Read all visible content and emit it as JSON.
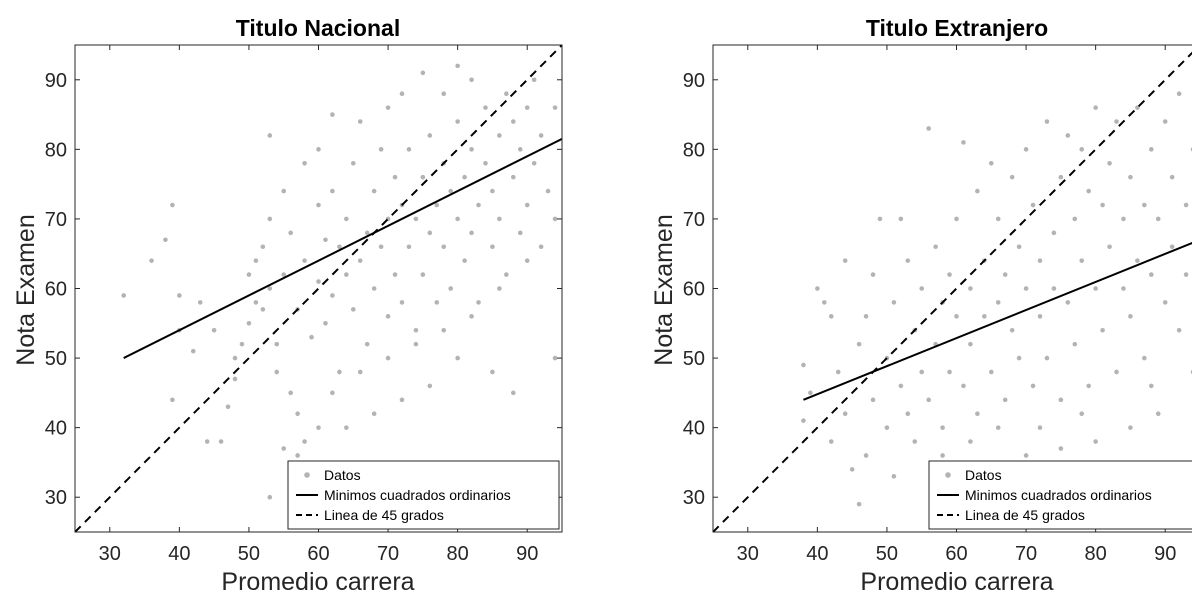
{
  "chart_data": [
    {
      "type": "scatter",
      "title": "Titulo Nacional",
      "xlabel": "Promedio carrera",
      "ylabel": "Nota Examen",
      "xlim": [
        25,
        95
      ],
      "ylim": [
        25,
        95
      ],
      "xticks": [
        30,
        40,
        50,
        60,
        70,
        80,
        90
      ],
      "yticks": [
        30,
        40,
        50,
        60,
        70,
        80,
        90
      ],
      "grid": false,
      "legend": {
        "position": "bottom-right",
        "entries": [
          "Datos",
          "Minimos cuadrados ordinarios",
          "Linea de 45 grados"
        ]
      },
      "series": [
        {
          "name": "Datos",
          "kind": "scatter",
          "color": "#b3b3b3",
          "points": [
            [
              32,
              59
            ],
            [
              36,
              64
            ],
            [
              38,
              67
            ],
            [
              39,
              72
            ],
            [
              40,
              59
            ],
            [
              40,
              54
            ],
            [
              39,
              44
            ],
            [
              42,
              51
            ],
            [
              43,
              58
            ],
            [
              44,
              38
            ],
            [
              45,
              54
            ],
            [
              46,
              38
            ],
            [
              47,
              43
            ],
            [
              48,
              47
            ],
            [
              48,
              50
            ],
            [
              49,
              52
            ],
            [
              50,
              55
            ],
            [
              50,
              62
            ],
            [
              51,
              58
            ],
            [
              51,
              64
            ],
            [
              52,
              57
            ],
            [
              52,
              66
            ],
            [
              53,
              60
            ],
            [
              53,
              70
            ],
            [
              53,
              82
            ],
            [
              54,
              48
            ],
            [
              54,
              52
            ],
            [
              55,
              62
            ],
            [
              55,
              74
            ],
            [
              56,
              45
            ],
            [
              56,
              68
            ],
            [
              57,
              36
            ],
            [
              57,
              57
            ],
            [
              58,
              64
            ],
            [
              58,
              78
            ],
            [
              59,
              53
            ],
            [
              60,
              61
            ],
            [
              60,
              72
            ],
            [
              60,
              80
            ],
            [
              61,
              55
            ],
            [
              61,
              67
            ],
            [
              62,
              59
            ],
            [
              62,
              74
            ],
            [
              62,
              85
            ],
            [
              63,
              48
            ],
            [
              63,
              66
            ],
            [
              64,
              62
            ],
            [
              64,
              70
            ],
            [
              65,
              78
            ],
            [
              65,
              57
            ],
            [
              66,
              64
            ],
            [
              66,
              84
            ],
            [
              67,
              68
            ],
            [
              67,
              52
            ],
            [
              68,
              74
            ],
            [
              68,
              60
            ],
            [
              69,
              66
            ],
            [
              69,
              80
            ],
            [
              70,
              70
            ],
            [
              70,
              56
            ],
            [
              70,
              86
            ],
            [
              71,
              62
            ],
            [
              71,
              76
            ],
            [
              72,
              72
            ],
            [
              72,
              58
            ],
            [
              72,
              88
            ],
            [
              73,
              66
            ],
            [
              73,
              80
            ],
            [
              74,
              70
            ],
            [
              74,
              54
            ],
            [
              75,
              76
            ],
            [
              75,
              62
            ],
            [
              75,
              91
            ],
            [
              76,
              68
            ],
            [
              76,
              82
            ],
            [
              77,
              72
            ],
            [
              77,
              58
            ],
            [
              78,
              78
            ],
            [
              78,
              66
            ],
            [
              78,
              88
            ],
            [
              79,
              74
            ],
            [
              79,
              60
            ],
            [
              80,
              70
            ],
            [
              80,
              84
            ],
            [
              80,
              92
            ],
            [
              81,
              76
            ],
            [
              81,
              64
            ],
            [
              82,
              80
            ],
            [
              82,
              68
            ],
            [
              82,
              90
            ],
            [
              83,
              72
            ],
            [
              83,
              58
            ],
            [
              84,
              78
            ],
            [
              84,
              86
            ],
            [
              85,
              74
            ],
            [
              85,
              66
            ],
            [
              86,
              82
            ],
            [
              86,
              70
            ],
            [
              87,
              88
            ],
            [
              87,
              62
            ],
            [
              88,
              76
            ],
            [
              88,
              84
            ],
            [
              89,
              80
            ],
            [
              89,
              68
            ],
            [
              90,
              86
            ],
            [
              90,
              72
            ],
            [
              91,
              78
            ],
            [
              91,
              90
            ],
            [
              92,
              82
            ],
            [
              93,
              74
            ],
            [
              94,
              86
            ],
            [
              94,
              50
            ],
            [
              88,
              45
            ],
            [
              85,
              48
            ],
            [
              80,
              50
            ],
            [
              76,
              46
            ],
            [
              72,
              44
            ],
            [
              68,
              42
            ],
            [
              64,
              40
            ],
            [
              60,
              40
            ],
            [
              58,
              38
            ],
            [
              55,
              37
            ],
            [
              53,
              30
            ],
            [
              57,
              42
            ],
            [
              62,
              45
            ],
            [
              66,
              48
            ],
            [
              70,
              50
            ],
            [
              74,
              52
            ],
            [
              78,
              54
            ],
            [
              82,
              56
            ],
            [
              86,
              60
            ],
            [
              90,
              64
            ],
            [
              92,
              66
            ],
            [
              94,
              70
            ]
          ]
        },
        {
          "name": "Minimos cuadrados ordinarios",
          "kind": "line",
          "color": "#000000",
          "dash": "solid",
          "points": [
            [
              32,
              50
            ],
            [
              95,
              81.5
            ]
          ]
        },
        {
          "name": "Linea de 45 grados",
          "kind": "line",
          "color": "#000000",
          "dash": "dashed",
          "points": [
            [
              25,
              25
            ],
            [
              95,
              95
            ]
          ]
        }
      ]
    },
    {
      "type": "scatter",
      "title": "Titulo Extranjero",
      "xlabel": "Promedio carrera",
      "ylabel": "Nota Examen",
      "xlim": [
        25,
        95
      ],
      "ylim": [
        25,
        95
      ],
      "xticks": [
        30,
        40,
        50,
        60,
        70,
        80,
        90
      ],
      "yticks": [
        30,
        40,
        50,
        60,
        70,
        80,
        90
      ],
      "grid": false,
      "legend": {
        "position": "bottom-right",
        "entries": [
          "Datos",
          "Minimos cuadrados ordinarios",
          "Linea de 45 grados"
        ]
      },
      "series": [
        {
          "name": "Datos",
          "kind": "scatter",
          "color": "#b3b3b3",
          "points": [
            [
              38,
              49
            ],
            [
              38,
              41
            ],
            [
              39,
              45
            ],
            [
              40,
              60
            ],
            [
              41,
              58
            ],
            [
              42,
              56
            ],
            [
              42,
              38
            ],
            [
              43,
              48
            ],
            [
              44,
              42
            ],
            [
              44,
              64
            ],
            [
              45,
              34
            ],
            [
              46,
              29
            ],
            [
              46,
              52
            ],
            [
              47,
              36
            ],
            [
              47,
              56
            ],
            [
              48,
              44
            ],
            [
              48,
              62
            ],
            [
              49,
              70
            ],
            [
              50,
              50
            ],
            [
              50,
              40
            ],
            [
              51,
              58
            ],
            [
              51,
              33
            ],
            [
              52,
              46
            ],
            [
              52,
              70
            ],
            [
              53,
              64
            ],
            [
              53,
              42
            ],
            [
              54,
              54
            ],
            [
              54,
              38
            ],
            [
              55,
              60
            ],
            [
              55,
              48
            ],
            [
              56,
              83
            ],
            [
              56,
              44
            ],
            [
              57,
              52
            ],
            [
              57,
              66
            ],
            [
              58,
              58
            ],
            [
              58,
              40
            ],
            [
              59,
              62
            ],
            [
              59,
              48
            ],
            [
              60,
              56
            ],
            [
              60,
              70
            ],
            [
              61,
              46
            ],
            [
              61,
              81
            ],
            [
              62,
              60
            ],
            [
              62,
              52
            ],
            [
              63,
              74
            ],
            [
              63,
              42
            ],
            [
              64,
              64
            ],
            [
              64,
              56
            ],
            [
              65,
              78
            ],
            [
              65,
              48
            ],
            [
              66,
              58
            ],
            [
              66,
              70
            ],
            [
              67,
              62
            ],
            [
              67,
              44
            ],
            [
              68,
              76
            ],
            [
              68,
              54
            ],
            [
              69,
              66
            ],
            [
              69,
              50
            ],
            [
              70,
              80
            ],
            [
              70,
              60
            ],
            [
              71,
              46
            ],
            [
              71,
              72
            ],
            [
              72,
              64
            ],
            [
              72,
              56
            ],
            [
              73,
              84
            ],
            [
              73,
              50
            ],
            [
              74,
              68
            ],
            [
              74,
              60
            ],
            [
              75,
              76
            ],
            [
              75,
              44
            ],
            [
              76,
              82
            ],
            [
              76,
              58
            ],
            [
              77,
              70
            ],
            [
              77,
              52
            ],
            [
              78,
              80
            ],
            [
              78,
              64
            ],
            [
              79,
              74
            ],
            [
              79,
              46
            ],
            [
              80,
              86
            ],
            [
              80,
              60
            ],
            [
              81,
              72
            ],
            [
              81,
              54
            ],
            [
              82,
              78
            ],
            [
              82,
              66
            ],
            [
              83,
              84
            ],
            [
              83,
              48
            ],
            [
              84,
              70
            ],
            [
              84,
              60
            ],
            [
              85,
              76
            ],
            [
              85,
              56
            ],
            [
              86,
              86
            ],
            [
              86,
              64
            ],
            [
              87,
              72
            ],
            [
              87,
              50
            ],
            [
              88,
              80
            ],
            [
              88,
              62
            ],
            [
              89,
              70
            ],
            [
              89,
              42
            ],
            [
              90,
              84
            ],
            [
              90,
              58
            ],
            [
              91,
              76
            ],
            [
              91,
              66
            ],
            [
              92,
              88
            ],
            [
              92,
              54
            ],
            [
              93,
              72
            ],
            [
              93,
              62
            ],
            [
              94,
              80
            ],
            [
              94,
              48
            ],
            [
              95,
              74
            ],
            [
              95,
              68
            ],
            [
              85,
              40
            ],
            [
              80,
              38
            ],
            [
              75,
              37
            ],
            [
              70,
              36
            ],
            [
              66,
              40
            ],
            [
              62,
              38
            ],
            [
              58,
              36
            ],
            [
              72,
              40
            ],
            [
              78,
              42
            ],
            [
              88,
              46
            ]
          ]
        },
        {
          "name": "Minimos cuadrados ordinarios",
          "kind": "line",
          "color": "#000000",
          "dash": "solid",
          "points": [
            [
              38,
              44
            ],
            [
              95,
              67
            ]
          ]
        },
        {
          "name": "Linea de 45 grados",
          "kind": "line",
          "color": "#000000",
          "dash": "dashed",
          "points": [
            [
              25,
              25
            ],
            [
              95,
              95
            ]
          ]
        }
      ]
    }
  ]
}
